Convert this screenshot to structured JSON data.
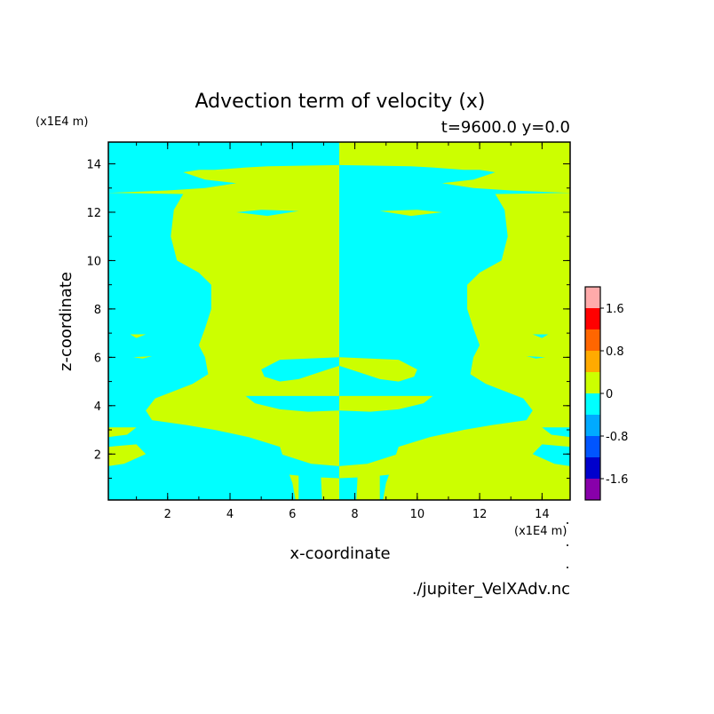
{
  "chart_data": {
    "type": "heatmap",
    "title": "Advection term of velocity (x)",
    "subtitle": "t=9600.0 y=0.0",
    "xlabel": "x-coordinate",
    "ylabel": "z-coordinate",
    "x_unit": "(x1E4 m)",
    "y_unit": "(x1E4 m)",
    "source": "./jupiter_VelXAdv.nc",
    "xlim": [
      0.1,
      14.9
    ],
    "ylim": [
      0.1,
      14.9
    ],
    "x_ticks": [
      "2",
      "4",
      "6",
      "8",
      "10",
      "12",
      "14"
    ],
    "y_ticks": [
      "2",
      "4",
      "6",
      "8",
      "10",
      "12",
      "14"
    ],
    "colorbar": {
      "tick_labels": [
        "1.6",
        "0.8",
        "0",
        "-0.8",
        "-1.6"
      ],
      "levels": [
        {
          "range": [
            1.6,
            2.0
          ],
          "color": "#ffaaaa"
        },
        {
          "range": [
            1.2,
            1.6
          ],
          "color": "#ff0000"
        },
        {
          "range": [
            0.8,
            1.2
          ],
          "color": "#ff6600"
        },
        {
          "range": [
            0.4,
            0.8
          ],
          "color": "#ffaa00"
        },
        {
          "range": [
            0.0,
            0.4
          ],
          "color": "#ccff00"
        },
        {
          "range": [
            -0.4,
            0.0
          ],
          "color": "#00ffff"
        },
        {
          "range": [
            -0.8,
            -0.4
          ],
          "color": "#00aaff"
        },
        {
          "range": [
            -1.2,
            -0.8
          ],
          "color": "#0055ff"
        },
        {
          "range": [
            -1.6,
            -1.2
          ],
          "color": "#0000cc"
        },
        {
          "range": [
            -2.0,
            -1.6
          ],
          "color": "#8800aa"
        }
      ]
    },
    "field": {
      "positive_color": "#ccff00",
      "negative_color": "#00ffff",
      "center_x": 7.5,
      "negative_regions_left_half": [
        [
          [
            0.1,
            14.9
          ],
          [
            7.5,
            14.9
          ],
          [
            7.5,
            13.95
          ],
          [
            5.2,
            13.9
          ],
          [
            4.5,
            13.85
          ],
          [
            3.5,
            13.75
          ],
          [
            3.0,
            13.75
          ],
          [
            2.5,
            13.65
          ],
          [
            3.2,
            13.35
          ],
          [
            4.2,
            13.2
          ],
          [
            3.2,
            13.0
          ],
          [
            2.0,
            12.9
          ],
          [
            0.1,
            12.8
          ]
        ],
        [
          [
            0.1,
            12.8
          ],
          [
            2.5,
            12.75
          ],
          [
            2.2,
            12.1
          ],
          [
            2.1,
            11.0
          ],
          [
            2.3,
            10.0
          ],
          [
            3.0,
            9.5
          ],
          [
            3.4,
            9.0
          ],
          [
            3.4,
            8.0
          ],
          [
            3.2,
            7.2
          ],
          [
            3.0,
            6.5
          ],
          [
            3.2,
            6.0
          ],
          [
            3.3,
            5.3
          ],
          [
            2.8,
            4.9
          ],
          [
            1.6,
            4.3
          ],
          [
            1.3,
            3.8
          ],
          [
            1.5,
            3.4
          ],
          [
            2.6,
            3.2
          ],
          [
            3.5,
            3.0
          ],
          [
            4.6,
            2.7
          ],
          [
            5.6,
            2.3
          ],
          [
            5.8,
            1.5
          ],
          [
            6.0,
            0.8
          ],
          [
            6.1,
            0.1
          ],
          [
            0.1,
            0.1
          ]
        ],
        [
          [
            4.5,
            4.4
          ],
          [
            7.5,
            4.4
          ],
          [
            7.5,
            3.8
          ],
          [
            6.5,
            3.75
          ],
          [
            5.6,
            3.85
          ],
          [
            4.8,
            4.1
          ]
        ],
        [
          [
            5.0,
            5.5
          ],
          [
            5.6,
            5.9
          ],
          [
            6.5,
            5.95
          ],
          [
            7.5,
            6.0
          ],
          [
            7.5,
            5.65
          ],
          [
            6.9,
            5.4
          ],
          [
            6.2,
            5.1
          ],
          [
            5.6,
            5.0
          ],
          [
            5.1,
            5.2
          ]
        ],
        [
          [
            3.5,
            2.0
          ],
          [
            4.6,
            2.35
          ],
          [
            5.5,
            2.05
          ],
          [
            6.6,
            1.6
          ],
          [
            7.5,
            1.5
          ],
          [
            7.5,
            1.0
          ],
          [
            6.6,
            1.05
          ],
          [
            5.5,
            1.2
          ],
          [
            4.4,
            1.35
          ],
          [
            3.6,
            1.6
          ]
        ],
        [
          [
            4.2,
            12.0
          ],
          [
            5.0,
            12.1
          ],
          [
            6.2,
            12.05
          ],
          [
            5.2,
            11.85
          ]
        ],
        [
          [
            6.2,
            1.7
          ],
          [
            6.9,
            1.4
          ],
          [
            6.95,
            0.1
          ],
          [
            6.2,
            0.1
          ]
        ]
      ],
      "positive_islands_left_half": [
        [
          [
            2.3,
            12.2
          ],
          [
            2.6,
            12.4
          ],
          [
            2.5,
            11.8
          ]
        ],
        [
          [
            0.8,
            6.95
          ],
          [
            1.3,
            6.95
          ],
          [
            1.0,
            6.8
          ]
        ],
        [
          [
            0.1,
            3.1
          ],
          [
            1.0,
            3.1
          ],
          [
            0.7,
            2.8
          ],
          [
            0.1,
            2.7
          ]
        ],
        [
          [
            0.1,
            2.3
          ],
          [
            1.0,
            2.4
          ],
          [
            1.3,
            2.0
          ],
          [
            0.6,
            1.6
          ],
          [
            0.1,
            1.5
          ]
        ],
        [
          [
            0.9,
            6.0
          ],
          [
            1.5,
            6.05
          ],
          [
            1.2,
            5.95
          ]
        ]
      ]
    }
  }
}
